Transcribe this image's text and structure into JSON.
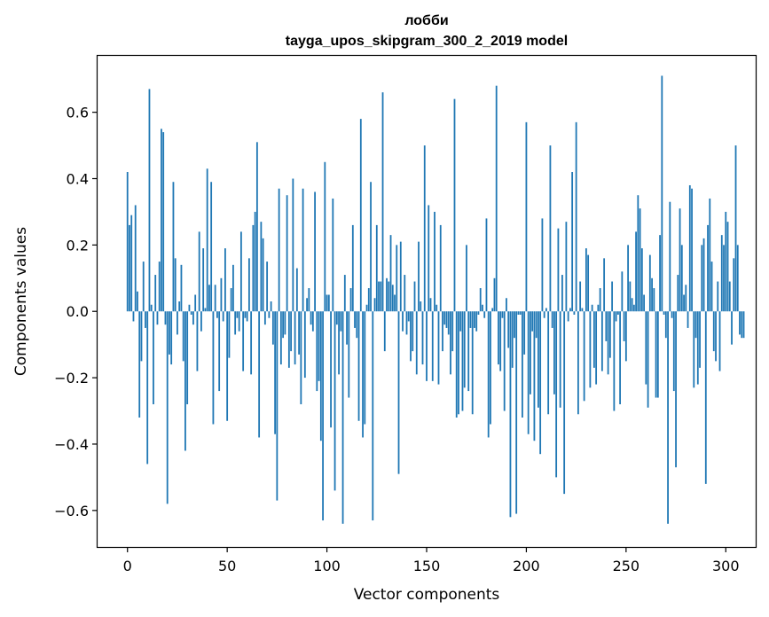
{
  "chart_data": {
    "type": "bar",
    "title": "лобби",
    "subtitle": "tayga_upos_skipgram_300_2_2019 model",
    "xlabel": "Vector components",
    "ylabel": "Components values",
    "xlim": [
      -15,
      315
    ],
    "ylim": [
      -0.71,
      0.77
    ],
    "xticks": [
      0,
      50,
      100,
      150,
      200,
      250,
      300
    ],
    "xtick_labels": [
      "0",
      "50",
      "100",
      "150",
      "200",
      "250",
      "300"
    ],
    "yticks": [
      -0.6,
      -0.4,
      -0.2,
      0.0,
      0.2,
      0.4,
      0.6
    ],
    "ytick_labels": [
      "−0.6",
      "−0.4",
      "−0.2",
      "0.0",
      "0.2",
      "0.4",
      "0.6"
    ],
    "grid": false,
    "bar_color": "#1f77b4",
    "series": [
      {
        "x_start": 0,
        "values": [
          0.42,
          0.26,
          0.29,
          -0.03,
          0.32,
          0.06,
          -0.32,
          -0.15,
          0.15,
          -0.05,
          -0.46,
          0.67,
          0.02,
          -0.28,
          0.11,
          -0.04,
          0.15,
          0.55,
          0.54,
          -0.04,
          -0.58,
          -0.13,
          -0.16,
          0.39,
          0.16,
          -0.07,
          0.03,
          0.14,
          -0.15,
          -0.42,
          -0.28,
          0.02,
          -0.01,
          -0.04,
          0.05,
          -0.18,
          0.24,
          -0.06,
          0.19,
          0.01,
          0.43,
          0.08,
          0.39,
          -0.34,
          0.08,
          -0.02,
          -0.24,
          0.1,
          -0.03,
          0.19,
          -0.33,
          -0.14,
          0.07,
          0.14,
          -0.07,
          -0.02,
          -0.06,
          0.24,
          -0.18,
          -0.02,
          -0.03,
          0.16,
          -0.19,
          0.26,
          0.3,
          0.51,
          -0.38,
          0.27,
          0.22,
          -0.04,
          0.15,
          -0.02,
          0.03,
          -0.1,
          -0.37,
          -0.57,
          0.37,
          -0.16,
          -0.08,
          -0.07,
          0.35,
          -0.17,
          -0.12,
          0.4,
          -0.16,
          0.13,
          -0.13,
          -0.28,
          0.37,
          -0.2,
          0.04,
          0.07,
          -0.04,
          -0.06,
          0.36,
          -0.24,
          -0.21,
          -0.39,
          -0.63,
          0.45,
          0.05,
          0.05,
          -0.35,
          0.34,
          -0.54,
          -0.04,
          -0.19,
          -0.06,
          -0.64,
          0.11,
          -0.1,
          -0.26,
          0.07,
          0.26,
          -0.05,
          -0.08,
          -0.33,
          0.58,
          -0.38,
          -0.34,
          0.02,
          0.07,
          0.39,
          -0.63,
          0.04,
          0.26,
          0.09,
          0.09,
          0.66,
          -0.12,
          0.1,
          0.09,
          0.23,
          0.08,
          0.05,
          0.2,
          -0.49,
          0.21,
          -0.06,
          0.11,
          -0.07,
          -0.03,
          -0.15,
          -0.12,
          0.09,
          -0.19,
          0.21,
          0.03,
          -0.16,
          0.5,
          -0.21,
          0.32,
          0.04,
          -0.21,
          0.3,
          0.02,
          -0.22,
          0.26,
          -0.12,
          -0.04,
          -0.05,
          -0.07,
          -0.19,
          -0.12,
          0.64,
          -0.32,
          -0.31,
          -0.06,
          -0.3,
          -0.23,
          0.2,
          -0.24,
          -0.05,
          -0.31,
          -0.05,
          -0.06,
          -0.01,
          0.07,
          0.02,
          -0.02,
          0.28,
          -0.38,
          -0.34,
          0.01,
          0.1,
          0.68,
          -0.16,
          -0.18,
          -0.02,
          -0.3,
          0.04,
          -0.11,
          -0.62,
          -0.17,
          -0.08,
          -0.61,
          -0.01,
          -0.01,
          -0.32,
          -0.13,
          0.57,
          -0.37,
          -0.25,
          -0.06,
          -0.39,
          -0.08,
          -0.29,
          -0.43,
          0.28,
          -0.02,
          0.01,
          -0.31,
          0.5,
          -0.05,
          -0.25,
          -0.5,
          0.25,
          -0.29,
          0.11,
          -0.55,
          0.27,
          -0.03,
          0.01,
          0.42,
          -0.01,
          0.57,
          -0.31,
          0.09,
          0.01,
          -0.27,
          0.19,
          0.17,
          -0.23,
          0.02,
          -0.17,
          -0.22,
          0.02,
          0.07,
          -0.18,
          0.16,
          -0.09,
          -0.19,
          -0.14,
          0.09,
          -0.3,
          -0.03,
          -0.01,
          -0.28,
          0.12,
          -0.09,
          -0.15,
          0.2,
          0.09,
          0.04,
          0.02,
          0.24,
          0.35,
          0.31,
          0.19,
          0.05,
          -0.22,
          -0.29,
          0.17,
          0.1,
          0.07,
          -0.26,
          -0.26,
          0.23,
          0.71,
          -0.01,
          -0.08,
          -0.64,
          0.33,
          -0.02,
          -0.24,
          -0.47,
          0.11,
          0.31,
          0.2,
          0.05,
          0.08,
          -0.05,
          0.38,
          0.37,
          -0.23,
          -0.08,
          -0.22,
          -0.17,
          0.2,
          0.22,
          -0.52,
          0.26,
          0.34,
          0.15,
          -0.12,
          -0.15,
          0.09,
          -0.18,
          0.23,
          0.2,
          0.3,
          0.27,
          0.09,
          -0.1,
          0.16,
          0.5,
          0.2,
          -0.07,
          -0.08,
          -0.08
        ]
      }
    ]
  }
}
